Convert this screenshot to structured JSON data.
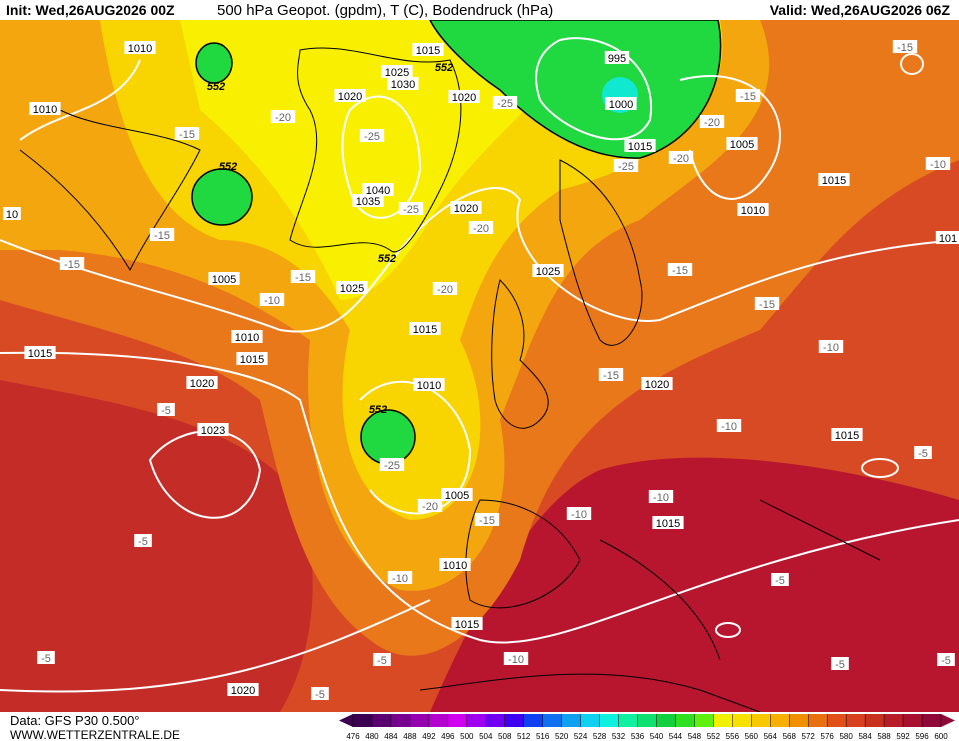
{
  "header": {
    "init": "Init: Wed,26AUG2026 00Z",
    "title": "500 hPa Geopot. (gpdm), T (C), Bodendruck (hPa)",
    "valid": "Valid: Wed,26AUG2026 06Z"
  },
  "footer": {
    "data_source": "Data: GFS P30 0.500°",
    "website": "WWW.WETTERZENTRALE.DE"
  },
  "map": {
    "isobar_labels": [
      "1010",
      "1015",
      "1025",
      "1030",
      "995",
      "1000",
      "1010",
      "1020",
      "1020",
      "1015",
      "1005",
      "1015",
      "1010",
      "1040",
      "1035",
      "1020",
      "1025",
      "1025",
      "1005",
      "1010",
      "1015",
      "1015",
      "1015",
      "1020",
      "1010",
      "1020",
      "1023",
      "1015",
      "1005",
      "1015",
      "1010",
      "1015",
      "1020",
      "10",
      "101"
    ],
    "temperature_labels": [
      "-15",
      "-15",
      "-20",
      "-25",
      "-15",
      "-20",
      "-25",
      "-20",
      "-25",
      "-10",
      "-25",
      "-20",
      "-15",
      "-15",
      "-20",
      "-15",
      "-15",
      "-10",
      "-15",
      "-10",
      "-15",
      "-5",
      "-10",
      "-25",
      "-5",
      "-10",
      "-20",
      "-15",
      "-10",
      "-5",
      "-10",
      "-5",
      "-5",
      "-5",
      "-10",
      "-5",
      "-5",
      "-5"
    ],
    "geopotential_labels": [
      "552",
      "552",
      "552",
      "552",
      "552"
    ],
    "colorbar": {
      "ticks": [
        476,
        480,
        484,
        488,
        492,
        496,
        500,
        504,
        508,
        512,
        516,
        520,
        524,
        528,
        532,
        536,
        540,
        544,
        548,
        552,
        556,
        560,
        564,
        568,
        572,
        576,
        580,
        584,
        588,
        592,
        596,
        600
      ],
      "colors": [
        "#3c0050",
        "#5a0070",
        "#780090",
        "#9600b0",
        "#b400d0",
        "#d200f0",
        "#a000f0",
        "#7000f0",
        "#4000f0",
        "#1040f0",
        "#1070f0",
        "#10a0f0",
        "#10d0f0",
        "#10f0e0",
        "#10f0a0",
        "#10e070",
        "#10d040",
        "#30e020",
        "#60f010",
        "#f0f000",
        "#f8e000",
        "#f8c800",
        "#f8b000",
        "#f09000",
        "#e87010",
        "#e05018",
        "#d84020",
        "#c83020",
        "#b81c28",
        "#a81030",
        "#900838"
      ]
    }
  }
}
